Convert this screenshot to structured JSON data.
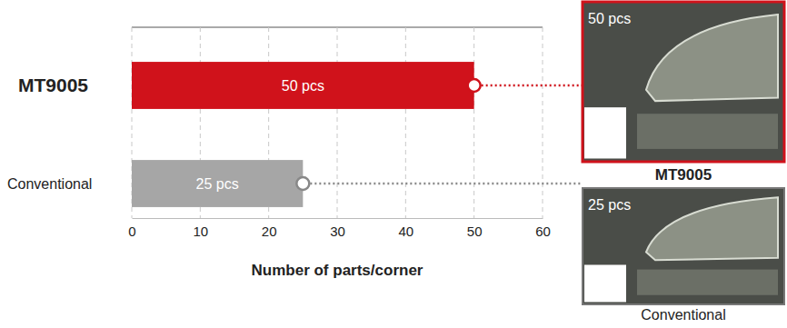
{
  "chart_data": {
    "type": "bar",
    "orientation": "horizontal",
    "categories": [
      "MT9005",
      "Conventional"
    ],
    "values": [
      50,
      25
    ],
    "value_labels": [
      "50 pcs",
      "25 pcs"
    ],
    "colors": [
      "#d0121b",
      "#a6a6a6"
    ],
    "data_labels": true,
    "xlabel": "Number of parts/corner",
    "xlim": [
      0,
      60
    ],
    "xticks": [
      0,
      10,
      20,
      30,
      40,
      50,
      60
    ],
    "grid": true
  }
}
